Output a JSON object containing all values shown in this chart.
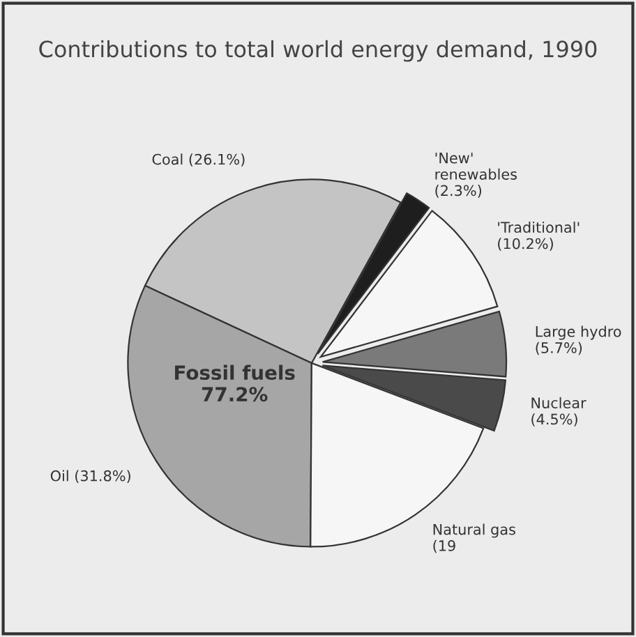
{
  "chart_data": {
    "type": "pie",
    "title": "Contributions to total world energy demand, 1990",
    "categories": [
      "Coal (26.1%)",
      "Oil (31.8%)",
      "Natural gas (19",
      "Nuclear (4.5%)",
      "Large hydro (5.7%)",
      "'Traditional' (10.2%)",
      "'New' renewables (2.3%)"
    ],
    "values": [
      26.1,
      31.8,
      19.3,
      4.5,
      5.7,
      10.2,
      2.3
    ],
    "colors": [
      "#c4c4c4",
      "#a6a6a6",
      "#f6f6f6",
      "#4a4a4a",
      "#7a7a7a",
      "#f6f6f6",
      "#1e1e1e"
    ],
    "annotations": [
      "Fossil fuels 77.2%"
    ]
  }
}
